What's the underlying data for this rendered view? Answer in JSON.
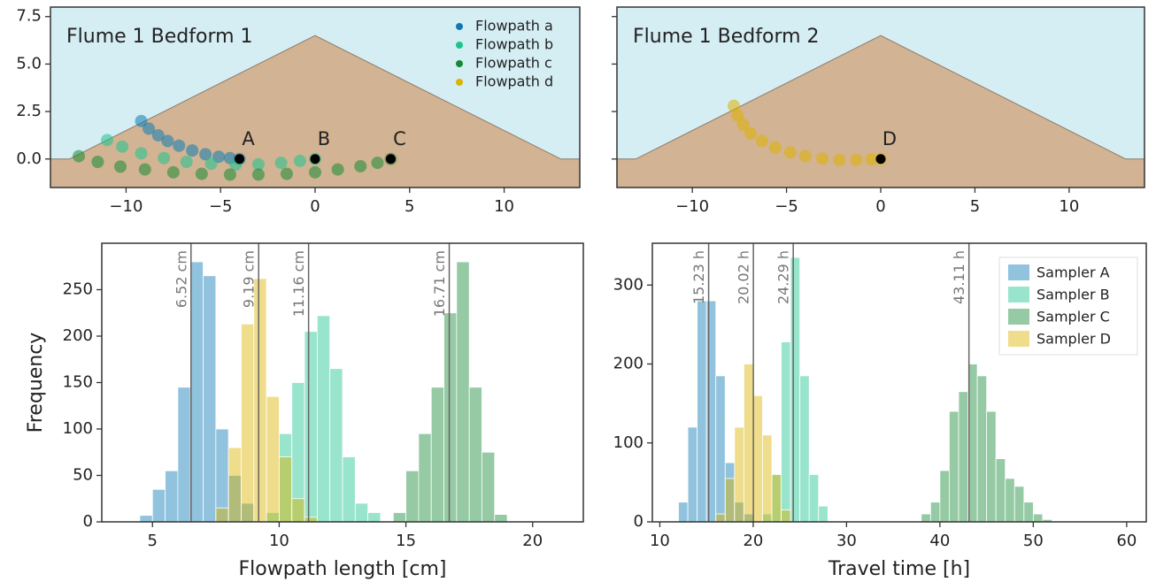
{
  "chart_data": [
    {
      "type": "scatter",
      "title": "Flume 1 Bedform 1",
      "background_color": "#d5eef4",
      "bed_color": "#d2b393",
      "xlim": [
        -14,
        14
      ],
      "ylim": [
        -1.5,
        8
      ],
      "xticks": [
        {
          "value": -10,
          "label": "−10"
        },
        {
          "value": -5,
          "label": "−5"
        },
        0,
        5,
        10
      ],
      "yticks": [
        {
          "value": 0,
          "label": "0.0"
        },
        {
          "value": 2.5,
          "label": "2.5"
        },
        {
          "value": 5,
          "label": "5.0"
        },
        {
          "value": 7.5,
          "label": "7.5"
        }
      ],
      "show_ytick_labels": true,
      "profile": {
        "x": [
          -14,
          -13,
          0,
          13,
          14
        ],
        "y": [
          0,
          0,
          6.5,
          0,
          0
        ]
      },
      "series": [
        {
          "name": "Flowpath a",
          "color": "#0c7bb5",
          "x": [
            -9.2,
            -8.8,
            -8.3,
            -7.8,
            -7.2,
            -6.5,
            -5.8,
            -5.1,
            -4.5,
            -4.0
          ],
          "y": [
            2.0,
            1.6,
            1.25,
            0.95,
            0.7,
            0.45,
            0.25,
            0.12,
            0.05,
            0
          ]
        },
        {
          "name": "Flowpath b",
          "color": "#1cc48f",
          "x": [
            -11,
            -10.2,
            -9.2,
            -8,
            -6.8,
            -5.5,
            -4.2,
            -3,
            -1.8,
            -0.8,
            0
          ],
          "y": [
            1.0,
            0.65,
            0.3,
            0.05,
            -0.15,
            -0.25,
            -0.3,
            -0.28,
            -0.2,
            -0.1,
            0
          ]
        },
        {
          "name": "Flowpath c",
          "color": "#158a35",
          "x": [
            -12.5,
            -11.5,
            -10.3,
            -9,
            -7.5,
            -6,
            -4.5,
            -3,
            -1.5,
            0,
            1.2,
            2.4,
            3.3,
            4
          ],
          "y": [
            0.15,
            -0.15,
            -0.4,
            -0.55,
            -0.7,
            -0.78,
            -0.82,
            -0.82,
            -0.78,
            -0.7,
            -0.55,
            -0.38,
            -0.2,
            0
          ]
        }
      ],
      "points": [
        {
          "label": "A",
          "x": -4,
          "y": 0
        },
        {
          "label": "B",
          "x": 0,
          "y": 0
        },
        {
          "label": "C",
          "x": 4,
          "y": 0
        }
      ],
      "legend": "upper right",
      "legend_extra": [
        {
          "name": "Flowpath d",
          "color": "#dcb300"
        }
      ]
    },
    {
      "type": "scatter",
      "title": "Flume 1 Bedform 2",
      "background_color": "#d5eef4",
      "bed_color": "#d2b393",
      "xlim": [
        -14,
        14
      ],
      "ylim": [
        -1.5,
        8
      ],
      "xticks": [
        {
          "value": -10,
          "label": "−10"
        },
        {
          "value": -5,
          "label": "−5"
        },
        0,
        5,
        10
      ],
      "yticks": [
        0,
        2.5,
        5,
        7.5
      ],
      "show_ytick_labels": false,
      "profile": {
        "x": [
          -14,
          -13,
          0,
          13,
          14
        ],
        "y": [
          0,
          0,
          6.5,
          0,
          0
        ]
      },
      "series": [
        {
          "name": "Flowpath d",
          "color": "#dcb300",
          "x": [
            -7.8,
            -7.6,
            -7.3,
            -6.9,
            -6.3,
            -5.6,
            -4.8,
            -4,
            -3.1,
            -2.2,
            -1.3,
            -0.5,
            0
          ],
          "y": [
            2.8,
            2.3,
            1.8,
            1.35,
            0.95,
            0.6,
            0.35,
            0.15,
            0.02,
            -0.05,
            -0.05,
            -0.02,
            0
          ]
        }
      ],
      "points": [
        {
          "label": "D",
          "x": 0,
          "y": 0
        }
      ]
    },
    {
      "type": "histogram",
      "xlabel": "Flowpath length [cm]",
      "ylabel": "Frequency",
      "xlim": [
        3,
        22
      ],
      "ylim": [
        0,
        300
      ],
      "xticks": [
        5,
        10,
        15,
        20
      ],
      "yticks": [
        0,
        50,
        100,
        150,
        200,
        250
      ],
      "series": [
        {
          "name": "Sampler A",
          "color": "#0c7bb5",
          "bins": [
            4.5,
            5,
            5.5,
            6,
            6.5,
            7,
            7.5,
            8,
            8.5,
            9
          ],
          "values": [
            7,
            35,
            55,
            145,
            280,
            265,
            100,
            50,
            20
          ]
        },
        {
          "name": "Sampler B",
          "color": "#1cc48f",
          "bins": [
            9.5,
            10,
            10.5,
            11,
            11.5,
            12,
            12.5,
            13,
            13.5,
            14
          ],
          "values": [
            10,
            95,
            150,
            205,
            222,
            165,
            70,
            20,
            10
          ]
        },
        {
          "name": "Sampler C",
          "color": "#158a35",
          "bins": [
            14.5,
            15,
            15.5,
            16,
            16.5,
            17,
            17.5,
            18,
            18.5,
            19
          ],
          "values": [
            10,
            55,
            95,
            145,
            225,
            280,
            145,
            75,
            8
          ]
        },
        {
          "name": "Sampler D",
          "color": "#dcb300",
          "bins": [
            7.5,
            8,
            8.5,
            9,
            9.5,
            10,
            10.5,
            11,
            11.5
          ],
          "values": [
            15,
            80,
            213,
            262,
            135,
            70,
            25,
            5
          ]
        }
      ],
      "vlines": [
        {
          "value": 6.52,
          "label": "6.52 cm"
        },
        {
          "value": 9.19,
          "label": "9.19 cm"
        },
        {
          "value": 11.16,
          "label": "11.16 cm"
        },
        {
          "value": 16.71,
          "label": "16.71 cm"
        }
      ]
    },
    {
      "type": "histogram",
      "xlabel": "Travel time [h]",
      "xlim": [
        9.2,
        62.1
      ],
      "ylim": [
        0,
        353
      ],
      "xticks": [
        10,
        20,
        30,
        40,
        50,
        60
      ],
      "yticks": [
        0,
        100,
        200,
        300
      ],
      "series": [
        {
          "name": "Sampler A",
          "color": "#0c7bb5",
          "bins": [
            12,
            13,
            14,
            15,
            16,
            17,
            18,
            19,
            20
          ],
          "values": [
            25,
            120,
            280,
            280,
            185,
            75,
            25,
            10
          ]
        },
        {
          "name": "Sampler B",
          "color": "#1cc48f",
          "bins": [
            21,
            22,
            23,
            24,
            25,
            26,
            27,
            28
          ],
          "values": [
            10,
            60,
            228,
            335,
            185,
            60,
            20
          ]
        },
        {
          "name": "Sampler C",
          "color": "#158a35",
          "bins": [
            38,
            39,
            40,
            41,
            42,
            43,
            44,
            45,
            46,
            47,
            48,
            49,
            50,
            51,
            52
          ],
          "values": [
            10,
            25,
            65,
            140,
            165,
            200,
            185,
            140,
            80,
            55,
            45,
            25,
            10,
            3
          ]
        },
        {
          "name": "Sampler D",
          "color": "#dcb300",
          "bins": [
            16,
            17,
            18,
            19,
            20,
            21,
            22,
            23,
            24
          ],
          "values": [
            10,
            55,
            120,
            200,
            160,
            110,
            60,
            15
          ]
        }
      ],
      "vlines": [
        {
          "value": 15.23,
          "label": "15.23 h"
        },
        {
          "value": 20.02,
          "label": "20.02 h"
        },
        {
          "value": 24.29,
          "label": "24.29 h"
        },
        {
          "value": 43.11,
          "label": "43.11 h"
        }
      ],
      "legend": "upper right"
    }
  ]
}
